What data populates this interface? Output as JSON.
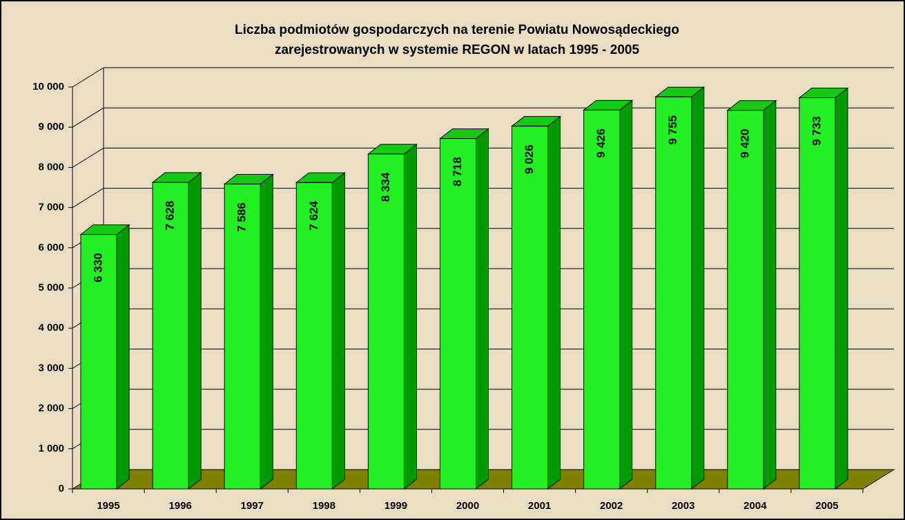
{
  "chart_data": {
    "type": "bar3d",
    "title": [
      "Liczba podmiotów gospodarczych na terenie Powiatu Nowosądeckiego",
      "zarejestrowanych w systemie REGON  w latach 1995 - 2005"
    ],
    "categories": [
      "1995",
      "1996",
      "1997",
      "1998",
      "1999",
      "2000",
      "2001",
      "2002",
      "2003",
      "2004",
      "2005"
    ],
    "values": [
      6330,
      7628,
      7586,
      7624,
      8334,
      8718,
      9026,
      9426,
      9755,
      9420,
      9733
    ],
    "value_labels": [
      "6 330",
      "7 628",
      "7 586",
      "7 624",
      "8 334",
      "8 718",
      "9 026",
      "9 426",
      "9 755",
      "9 420",
      "9 733"
    ],
    "color": "#22f022",
    "ylim": [
      0,
      10000
    ],
    "yticks": [
      0,
      {
        "value": 1000,
        "label": "1 000"
      },
      {
        "value": 2000,
        "label": "2 000"
      },
      {
        "value": 3000,
        "label": "3 000"
      },
      {
        "value": 4000,
        "label": "4 000"
      },
      {
        "value": 5000,
        "label": "5 000"
      },
      {
        "value": 6000,
        "label": "6 000"
      },
      {
        "value": 7000,
        "label": "7 000"
      },
      {
        "value": 8000,
        "label": "8 000"
      },
      {
        "value": 9000,
        "label": "9 000"
      },
      {
        "value": 10000,
        "label": "10 000"
      }
    ],
    "grid": true
  }
}
